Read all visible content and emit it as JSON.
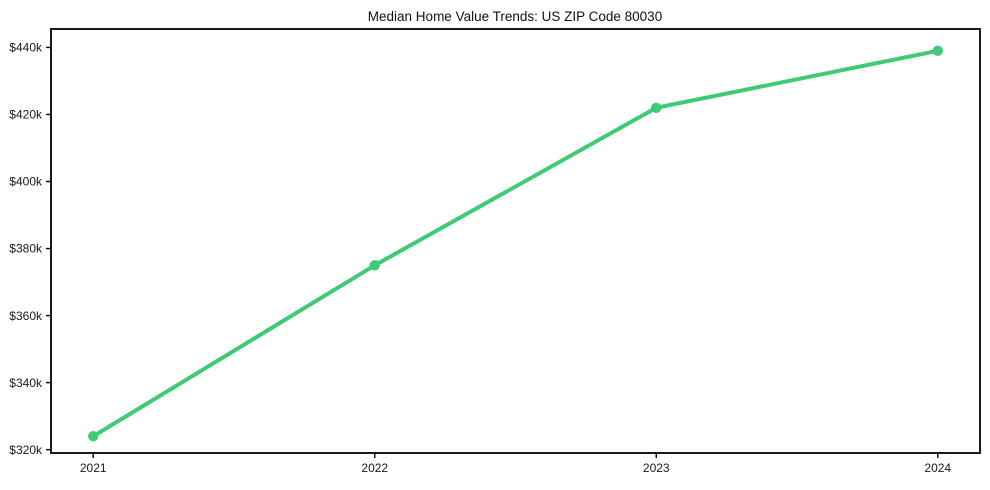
{
  "chart_data": {
    "type": "line",
    "title": "Median Home Value Trends: US ZIP Code 80030",
    "categories": [
      "2021",
      "2022",
      "2023",
      "2024"
    ],
    "values": [
      324000,
      375000,
      422000,
      439000
    ],
    "xlabel": "",
    "ylabel": "",
    "y_ticks": {
      "values": [
        320000,
        340000,
        360000,
        380000,
        400000,
        420000,
        440000
      ],
      "labels": [
        "$320k",
        "$340k",
        "$360k",
        "$380k",
        "$400k",
        "$420k",
        "$440k"
      ]
    },
    "ylim": [
      319000,
      445500
    ],
    "grid": false,
    "legend": false,
    "colors": {
      "line": "#3ecb74",
      "marker": "#3ecb74",
      "axis": "#000000",
      "text": "#1a1a1a",
      "background": "#ffffff"
    }
  }
}
